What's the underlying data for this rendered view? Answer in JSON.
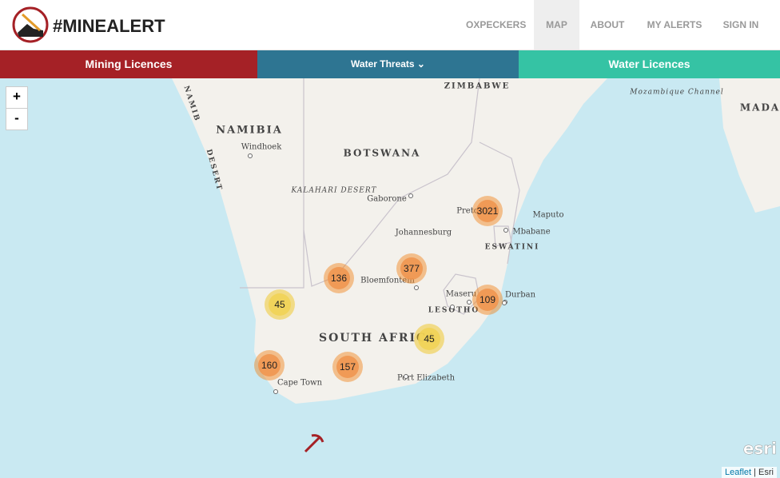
{
  "header": {
    "logo": "#MINEALERT",
    "nav": [
      "OXPECKERS",
      "MAP",
      "ABOUT",
      "MY ALERTS",
      "SIGN IN"
    ]
  },
  "tabs": [
    "Mining Licences",
    "Water Threats",
    "Water Licences"
  ],
  "map": {
    "zoom": [
      "+",
      "-"
    ],
    "labels": [
      "ZIMBABWE",
      "NAMIBIA",
      "BOTSWANA",
      "Windhoek",
      "KALAHARI DESERT",
      "Gaborone",
      "Pretoria",
      "Johannesburg",
      "Maputo",
      "Mbabane",
      "ESWATINI",
      "Bloemfontein",
      "Maseru",
      "Durban",
      "LESOTHO",
      "SOUTH AFRICA",
      "Port Elizabeth",
      "Cape Town",
      "Mozambique Channel",
      "MADA",
      "NAMIB",
      "DESERT"
    ],
    "clusters": [
      3021,
      377,
      136,
      109,
      45,
      45,
      160,
      157
    ],
    "watermark": "esri",
    "attribution": [
      "Leaflet",
      "Esri"
    ]
  }
}
